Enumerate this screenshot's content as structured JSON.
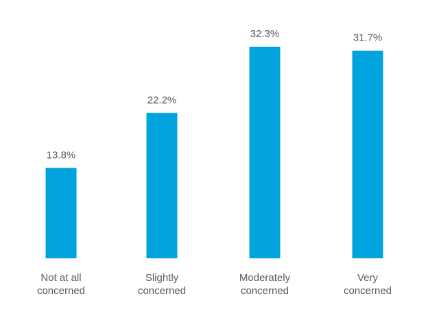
{
  "chart_data": {
    "type": "bar",
    "categories": [
      [
        "Not at all",
        "concerned"
      ],
      [
        "Slightly",
        "concerned"
      ],
      [
        "Moderately",
        "concerned"
      ],
      [
        "Very",
        "concerned"
      ]
    ],
    "values": [
      13.8,
      22.2,
      32.3,
      31.7
    ],
    "value_labels": [
      "13.8%",
      "22.2%",
      "32.3%",
      "31.7%"
    ],
    "title": "",
    "xlabel": "",
    "ylabel": "",
    "unit": "%",
    "ylim": [
      0,
      32.3
    ],
    "grid": false,
    "legend": "none",
    "colors": {
      "bar": "#00a3de",
      "label_text": "#595959",
      "background": "#ffffff"
    }
  }
}
